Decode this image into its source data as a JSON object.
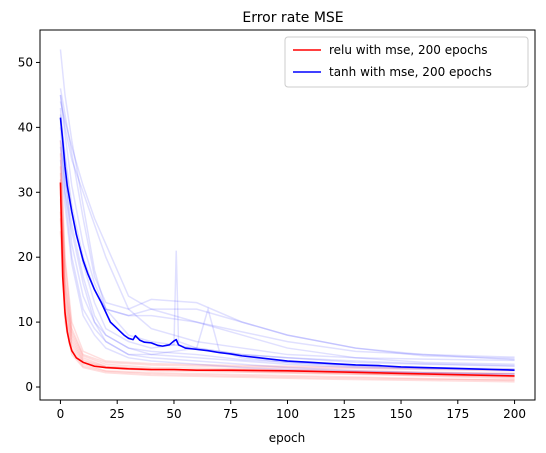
{
  "chart_data": {
    "type": "line",
    "title": "Error rate MSE",
    "xlabel": "epoch",
    "ylabel": "",
    "xlim": [
      -9,
      209
    ],
    "ylim": [
      -2,
      55
    ],
    "xticks": [
      0,
      25,
      50,
      75,
      100,
      125,
      150,
      175,
      200
    ],
    "yticks": [
      0,
      10,
      20,
      30,
      40,
      50
    ],
    "grid": false,
    "legend_position": "top-right",
    "colors": {
      "relu": "#ff0000",
      "tanh": "#0000ff",
      "relu_runs": "rgba(255,0,0,0.13)",
      "tanh_runs": "rgba(0,0,255,0.12)"
    },
    "series": [
      {
        "name": "relu with mse, 200 epochs",
        "color": "#ff0000",
        "x": [
          0,
          1,
          2,
          3,
          4,
          5,
          7,
          10,
          15,
          20,
          25,
          30,
          40,
          50,
          60,
          75,
          100,
          125,
          150,
          175,
          200
        ],
        "values": [
          31.5,
          17,
          11.5,
          8.5,
          6.8,
          5.6,
          4.5,
          3.8,
          3.2,
          3.0,
          2.9,
          2.8,
          2.7,
          2.7,
          2.6,
          2.6,
          2.5,
          2.3,
          2.1,
          1.9,
          1.7
        ]
      },
      {
        "name": "tanh with mse, 200 epochs",
        "color": "#0000ff",
        "x": [
          0,
          1,
          2,
          3,
          5,
          7,
          10,
          12,
          15,
          18,
          20,
          22,
          25,
          28,
          30,
          32,
          33,
          35,
          37,
          40,
          43,
          45,
          48,
          50,
          51,
          52,
          55,
          60,
          65,
          70,
          75,
          80,
          90,
          100,
          110,
          120,
          130,
          140,
          150,
          160,
          170,
          180,
          190,
          200
        ],
        "values": [
          41.5,
          38,
          34,
          31,
          27,
          23.5,
          19.5,
          17.5,
          15,
          13,
          11.5,
          10,
          9,
          8,
          7.5,
          7.3,
          7.9,
          7.2,
          6.9,
          6.8,
          6.4,
          6.3,
          6.5,
          7.1,
          7.3,
          6.5,
          6.0,
          5.8,
          5.6,
          5.3,
          5.1,
          4.8,
          4.4,
          4.0,
          3.8,
          3.6,
          3.4,
          3.3,
          3.1,
          3.0,
          2.9,
          2.8,
          2.7,
          2.6
        ]
      }
    ],
    "background_runs": {
      "relu": [
        {
          "x": [
            0,
            2,
            5,
            10,
            20,
            40,
            80,
            120,
            160,
            200
          ],
          "values": [
            33,
            16,
            8,
            4.5,
            3.2,
            2.8,
            2.4,
            2.1,
            1.9,
            1.5
          ]
        },
        {
          "x": [
            0,
            2,
            5,
            10,
            20,
            40,
            80,
            120,
            160,
            200
          ],
          "values": [
            27,
            12,
            6,
            3.5,
            2.5,
            2.2,
            1.9,
            1.6,
            1.3,
            1.0
          ]
        },
        {
          "x": [
            0,
            2,
            5,
            10,
            20,
            40,
            80,
            120,
            160,
            200
          ],
          "values": [
            36,
            19,
            9,
            5,
            3.8,
            3.4,
            3.1,
            2.9,
            2.7,
            2.5
          ]
        },
        {
          "x": [
            0,
            2,
            5,
            10,
            20,
            40,
            80,
            120,
            160,
            200
          ],
          "values": [
            24,
            10,
            5,
            3,
            2.2,
            1.8,
            1.5,
            1.2,
            1.0,
            0.8
          ]
        },
        {
          "x": [
            0,
            2,
            5,
            10,
            20,
            40,
            80,
            120,
            160,
            200
          ],
          "values": [
            30,
            14,
            7,
            4,
            3.0,
            2.6,
            2.6,
            2.4,
            2.2,
            2.0
          ]
        },
        {
          "x": [
            0,
            2,
            5,
            10,
            20,
            40,
            80,
            120,
            160,
            200
          ],
          "values": [
            34,
            17,
            8.5,
            4.8,
            3.5,
            3.0,
            2.8,
            2.6,
            2.3,
            2.1
          ]
        },
        {
          "x": [
            0,
            2,
            5,
            10,
            20,
            40,
            80,
            120,
            160,
            200
          ],
          "values": [
            26,
            11,
            5.5,
            3.2,
            2.4,
            2.0,
            1.7,
            1.4,
            1.2,
            1.1
          ]
        },
        {
          "x": [
            0,
            2,
            5,
            10,
            20,
            40,
            80,
            120,
            160,
            200
          ],
          "values": [
            29,
            13,
            6.5,
            3.8,
            2.9,
            2.5,
            2.3,
            2.0,
            1.8,
            1.6
          ]
        },
        {
          "x": [
            0,
            2,
            5,
            10,
            20,
            40,
            80,
            120,
            160,
            200
          ],
          "values": [
            32,
            15,
            7.5,
            4.2,
            3.1,
            2.7,
            2.5,
            2.2,
            1.7,
            1.3
          ]
        },
        {
          "x": [
            0,
            2,
            5,
            10,
            20,
            40,
            80,
            120,
            160,
            200
          ],
          "values": [
            38,
            20,
            10,
            5.5,
            4.0,
            3.6,
            3.3,
            3.1,
            2.9,
            2.7
          ]
        }
      ],
      "tanh": [
        {
          "x": [
            0,
            2,
            5,
            10,
            15,
            20,
            30,
            40,
            60,
            80,
            100,
            130,
            160,
            200
          ],
          "values": [
            52,
            45,
            38,
            28,
            18,
            12,
            8,
            7,
            6,
            5,
            4.5,
            4,
            3.6,
            3.3
          ]
        },
        {
          "x": [
            0,
            2,
            5,
            10,
            15,
            20,
            30,
            40,
            60,
            80,
            100,
            130,
            160,
            200
          ],
          "values": [
            45,
            40,
            35,
            30,
            25,
            20,
            12,
            9,
            7,
            6,
            5,
            4.5,
            4.3,
            4.1
          ]
        },
        {
          "x": [
            0,
            2,
            5,
            10,
            15,
            20,
            30,
            40,
            60,
            80,
            100,
            130,
            160,
            200
          ],
          "values": [
            43,
            33,
            22,
            14,
            10,
            8,
            6,
            5,
            4.5,
            4,
            3.5,
            3,
            2.8,
            2.6
          ]
        },
        {
          "x": [
            0,
            2,
            5,
            10,
            15,
            20,
            30,
            40,
            60,
            80,
            100,
            130,
            160,
            200
          ],
          "values": [
            40,
            30,
            20,
            12,
            9,
            7,
            5,
            4.5,
            4,
            3.5,
            3,
            2.5,
            2.2,
            2.0
          ]
        },
        {
          "x": [
            0,
            2,
            5,
            10,
            15,
            20,
            30,
            40,
            60,
            80,
            100,
            130,
            160,
            200
          ],
          "values": [
            44,
            41,
            37,
            31,
            26,
            22,
            14,
            12,
            10,
            8.5,
            7,
            5.5,
            5,
            4.6
          ]
        },
        {
          "x": [
            0,
            2,
            5,
            10,
            15,
            20,
            30,
            40,
            60,
            80,
            100,
            130,
            160,
            200
          ],
          "values": [
            46,
            42,
            36,
            26,
            17,
            13,
            12,
            13.5,
            13,
            10,
            8,
            6,
            5,
            4.2
          ]
        },
        {
          "x": [
            0,
            2,
            5,
            10,
            15,
            20,
            30,
            40,
            60,
            80,
            100,
            130,
            160,
            200
          ],
          "values": [
            42,
            36,
            28,
            20,
            15,
            12,
            11,
            11,
            10,
            8,
            6,
            4.5,
            3.8,
            3.5
          ]
        },
        {
          "x": [
            0,
            2,
            5,
            10,
            15,
            20,
            30,
            40,
            60,
            80,
            100,
            130,
            160,
            200
          ],
          "values": [
            38,
            32,
            25,
            17,
            11,
            8,
            6,
            5.5,
            5,
            4.2,
            3.8,
            3.3,
            3.0,
            2.8
          ]
        },
        {
          "x": [
            0,
            2,
            5,
            10,
            15,
            20,
            30,
            40,
            50,
            51,
            52,
            60,
            80,
            100,
            130,
            160,
            200
          ],
          "values": [
            41,
            35,
            27,
            19,
            13,
            9,
            7,
            6,
            6.5,
            21,
            7,
            6,
            5,
            4.5,
            3.8,
            3.5,
            3.2
          ]
        },
        {
          "x": [
            0,
            2,
            5,
            10,
            15,
            20,
            30,
            40,
            60,
            65,
            70,
            80,
            100,
            130,
            160,
            200
          ],
          "values": [
            37,
            30,
            24,
            16,
            10,
            7,
            5,
            5,
            6,
            12,
            5.5,
            4.5,
            3.8,
            3.2,
            2.9,
            2.7
          ]
        },
        {
          "x": [
            0,
            2,
            5,
            10,
            15,
            20,
            30,
            40,
            60,
            80,
            100,
            130,
            160,
            200
          ],
          "values": [
            45,
            39,
            31,
            22,
            16,
            12,
            11,
            12,
            12,
            10,
            8,
            6,
            4.8,
            4.4
          ]
        },
        {
          "x": [
            0,
            2,
            5,
            10,
            15,
            20,
            30,
            40,
            60,
            80,
            100,
            130,
            160,
            200
          ],
          "values": [
            35,
            28,
            19,
            11,
            8,
            6,
            4.5,
            4,
            3.5,
            3,
            2.7,
            2.4,
            2.2,
            2.0
          ]
        }
      ]
    }
  }
}
